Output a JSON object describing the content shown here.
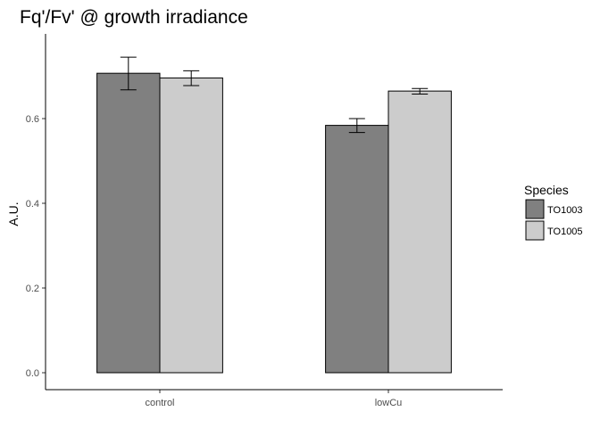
{
  "chart_data": {
    "type": "bar",
    "title": "Fq'/Fv' @ growth irradiance",
    "xlabel": "",
    "ylabel": "A.U.",
    "categories": [
      "control",
      "lowCu"
    ],
    "ylim": [
      -0.04,
      0.8
    ],
    "yticks": [
      0.0,
      0.2,
      0.4,
      0.6
    ],
    "ytick_labels": [
      "0.0",
      "0.2",
      "0.4",
      "0.6"
    ],
    "grid": false,
    "legend": {
      "title": "Species",
      "position": "right"
    },
    "series": [
      {
        "name": "TO1003",
        "color": "#808080",
        "values": [
          0.707,
          0.584
        ],
        "error_low": [
          0.668,
          0.567
        ],
        "error_high": [
          0.745,
          0.6
        ]
      },
      {
        "name": "TO1005",
        "color": "#cccccc",
        "values": [
          0.696,
          0.665
        ],
        "error_low": [
          0.678,
          0.658
        ],
        "error_high": [
          0.713,
          0.671
        ]
      }
    ]
  }
}
